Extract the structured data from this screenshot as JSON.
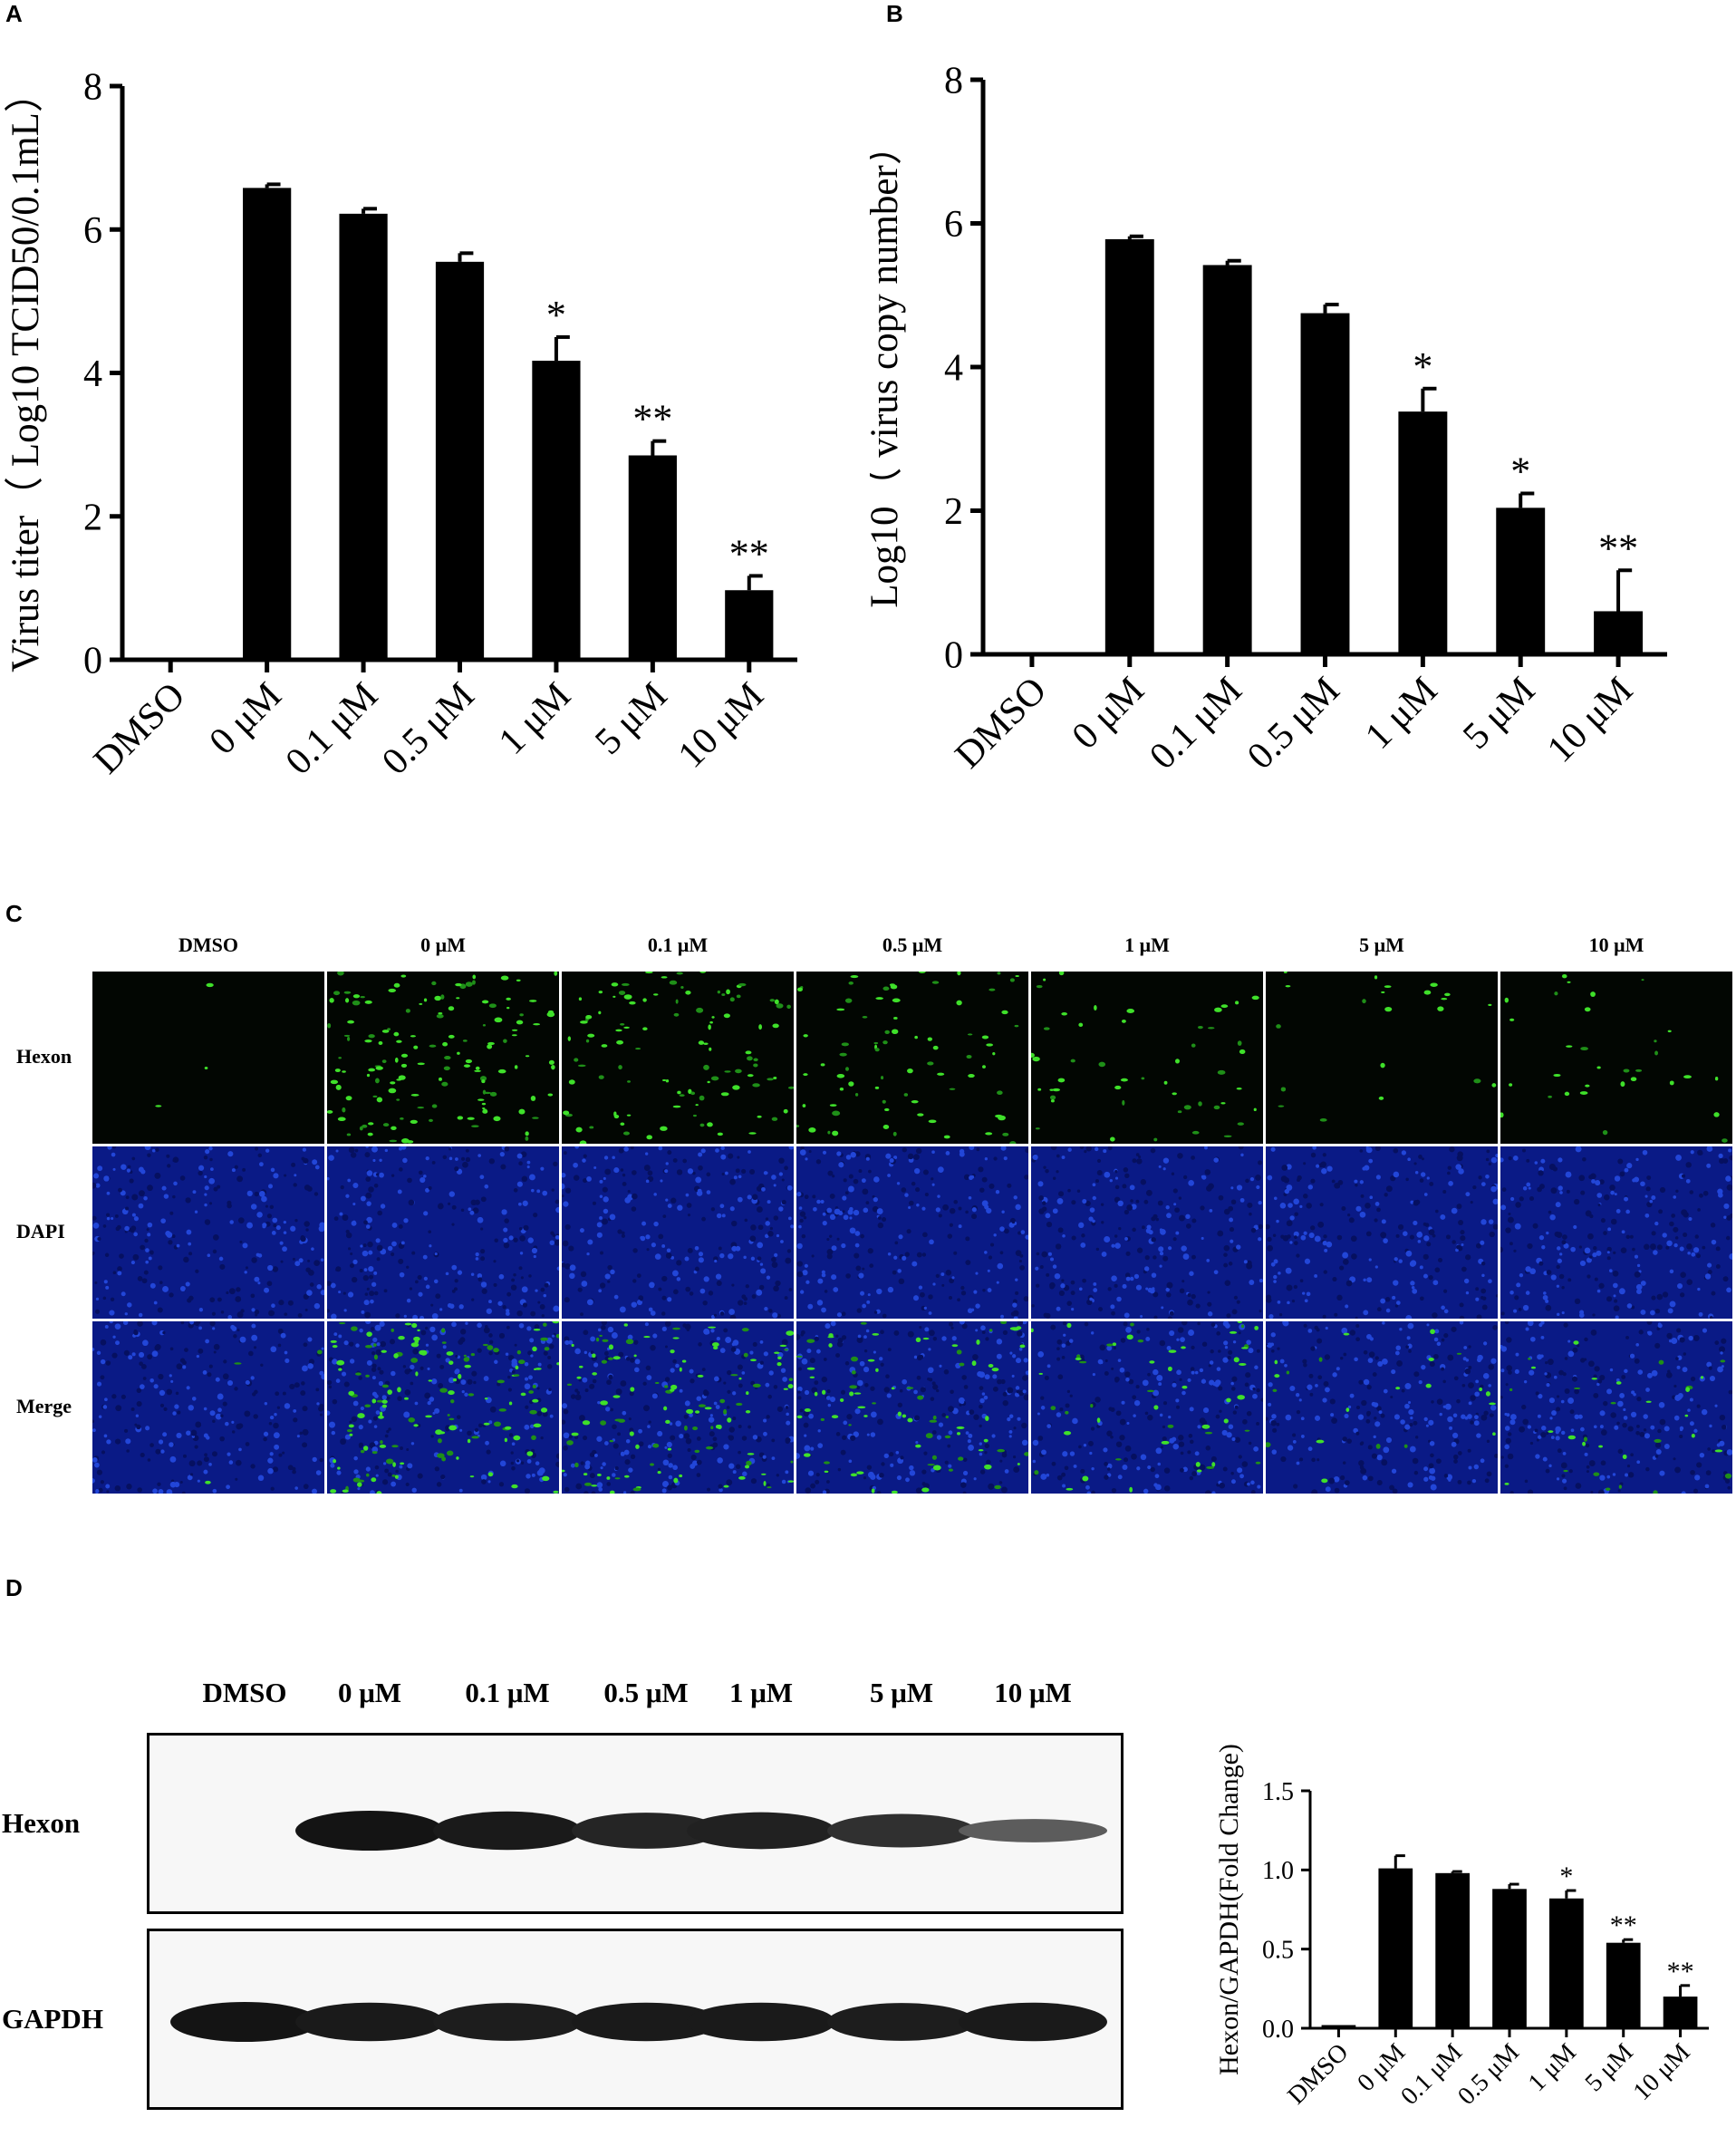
{
  "panels": {
    "A": "A",
    "B": "B",
    "C": "C",
    "D": "D"
  },
  "chart_data": [
    {
      "type": "bar",
      "categories": [
        "DMSO",
        "0 μM",
        "0.1 μM",
        "0.5 μM",
        "1 μM",
        "5 μM",
        "10 μM"
      ],
      "values": [
        0,
        6.58,
        6.22,
        5.55,
        4.17,
        2.85,
        0.97
      ],
      "errors": [
        0,
        0.05,
        0.07,
        0.12,
        0.33,
        0.2,
        0.2
      ],
      "significance": [
        "",
        "",
        "",
        "",
        "*",
        "**",
        "**"
      ],
      "ylabel": "Virus titer（ Log10 TCID50/0.1mL）",
      "ylim": [
        0,
        8
      ],
      "yticks": [
        0,
        2,
        4,
        6,
        8
      ]
    },
    {
      "type": "bar",
      "categories": [
        "DMSO",
        "0 μM",
        "0.1 μM",
        "0.5 μM",
        "1 μM",
        "5 μM",
        "10 μM"
      ],
      "values": [
        0,
        5.78,
        5.42,
        4.75,
        3.38,
        2.04,
        0.6
      ],
      "errors": [
        0,
        0.04,
        0.06,
        0.12,
        0.32,
        0.2,
        0.57
      ],
      "significance": [
        "",
        "",
        "",
        "",
        "*",
        "*",
        "**"
      ],
      "ylabel": "Log10（ virus copy number）",
      "ylim": [
        0,
        8
      ],
      "yticks": [
        0,
        2,
        4,
        6,
        8
      ]
    },
    {
      "type": "bar",
      "categories": [
        "DMSO",
        "0 μM",
        "0.1 μM",
        "0.5 μM",
        "1 μM",
        "5 μM",
        "10 μM"
      ],
      "values": [
        0.02,
        1.01,
        0.98,
        0.88,
        0.82,
        0.54,
        0.2
      ],
      "errors": [
        0,
        0.08,
        0.01,
        0.03,
        0.05,
        0.02,
        0.07
      ],
      "significance": [
        "",
        "",
        "",
        "",
        "*",
        "**",
        "**"
      ],
      "ylabel": "Hexon/GAPDH(Fold Change)",
      "ylim": [
        0,
        1.5
      ],
      "yticks": [
        "0.0",
        "0.5",
        "1.0",
        "1.5"
      ]
    }
  ],
  "imaging": {
    "columns": [
      "DMSO",
      "0 μM",
      "0.1 μM",
      "0.5 μM",
      "1 μM",
      "5 μM",
      "10 μM"
    ],
    "rows": [
      "Hexon",
      "DAPI",
      "Merge"
    ],
    "green_density": [
      0.02,
      1.0,
      0.75,
      0.55,
      0.35,
      0.15,
      0.22
    ]
  },
  "blot": {
    "lanes": [
      "DMSO",
      "0 μM",
      "0.1 μM",
      "0.5 μM",
      "1 μM",
      "5 μM",
      "10 μM"
    ],
    "rows": [
      "Hexon",
      "GAPDH"
    ],
    "hexon_intensity": [
      0,
      1.0,
      0.95,
      0.85,
      0.88,
      0.75,
      0.35
    ],
    "gapdh_intensity": [
      1.0,
      0.95,
      0.92,
      0.95,
      0.95,
      0.92,
      0.95
    ]
  }
}
